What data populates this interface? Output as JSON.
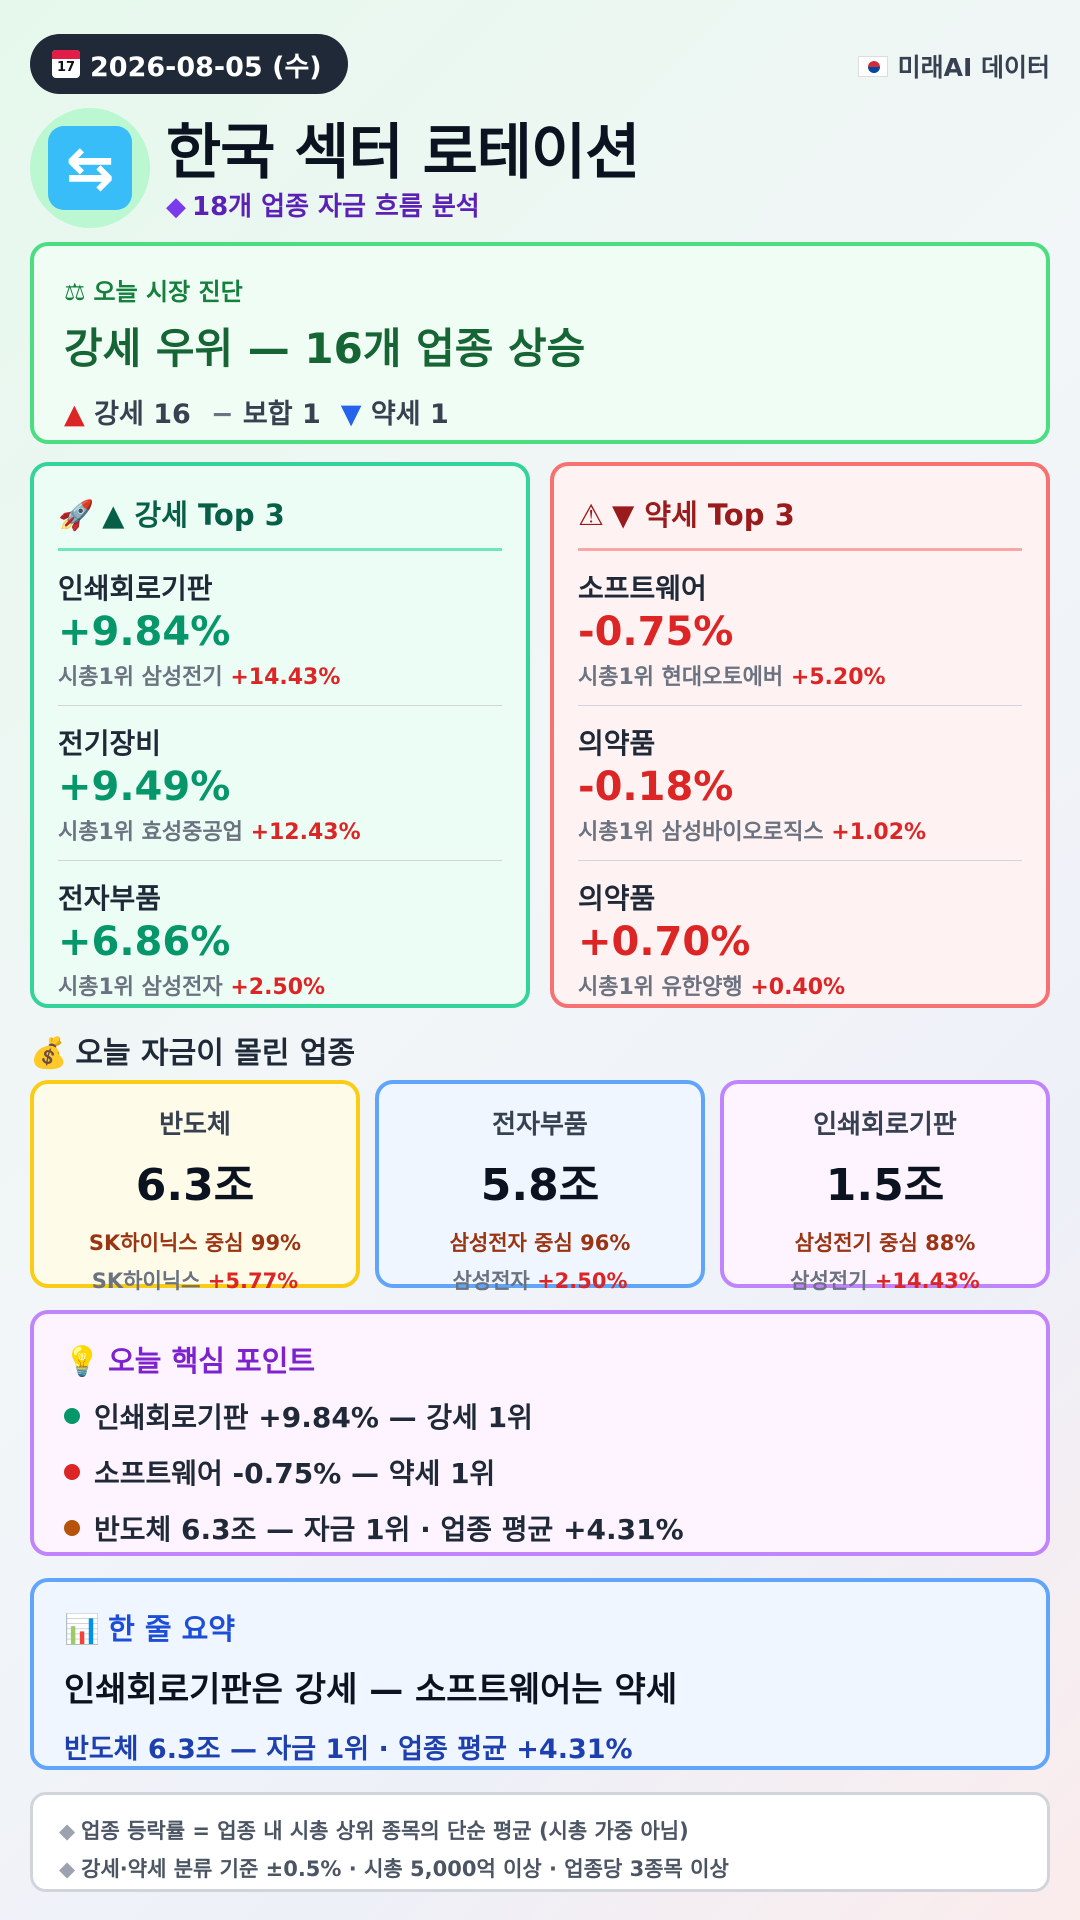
{
  "header": {
    "date": "2026-08-05 (수)",
    "calendar_icon_text": "17",
    "brand": "미래AI 데이터",
    "title": "한국 섹터 로테이션",
    "subtitle": "18개 업종 자금 흐름 분석",
    "hero_icon": "rotate-arrows-icon"
  },
  "diagnosis": {
    "label": "오늘 시장 진단",
    "headline": "강세 우위 — 16개 업종 상승",
    "strong_label": "강세 16",
    "neutral_label": "보합 1",
    "weak_label": "약세 1"
  },
  "strong_top3": {
    "title": "▲ 강세 Top 3",
    "items": [
      {
        "sector": "인쇄회로기판",
        "change": "+9.84%",
        "leader_prefix": "시총1위 삼성전기",
        "leader_change": "+14.43%"
      },
      {
        "sector": "전기장비",
        "change": "+9.49%",
        "leader_prefix": "시총1위 효성중공업",
        "leader_change": "+12.43%"
      },
      {
        "sector": "전자부품",
        "change": "+6.86%",
        "leader_prefix": "시총1위 삼성전자",
        "leader_change": "+2.50%"
      }
    ]
  },
  "weak_top3": {
    "title": "▼ 약세 Top 3",
    "items": [
      {
        "sector": "소프트웨어",
        "change": "-0.75%",
        "leader_prefix": "시총1위 현대오토에버",
        "leader_change": "+5.20%"
      },
      {
        "sector": "의약품",
        "change": "-0.18%",
        "leader_prefix": "시총1위 삼성바이오로직스",
        "leader_change": "+1.02%"
      },
      {
        "sector": "의약품",
        "change": "+0.70%",
        "leader_prefix": "시총1위 유한양행",
        "leader_change": "+0.40%"
      }
    ]
  },
  "money_flow": {
    "title": "오늘 자금이 몰린 업종",
    "sectors": [
      {
        "name": "반도체",
        "amount": "6.3조",
        "concentration": "SK하이닉스 중심 99%",
        "stock": "SK하이닉스",
        "stock_change": "+5.77%"
      },
      {
        "name": "전자부품",
        "amount": "5.8조",
        "concentration": "삼성전자 중심 96%",
        "stock": "삼성전자",
        "stock_change": "+2.50%"
      },
      {
        "name": "인쇄회로기판",
        "amount": "1.5조",
        "concentration": "삼성전기 중심 88%",
        "stock": "삼성전기",
        "stock_change": "+14.43%"
      }
    ]
  },
  "key_points": {
    "title": "오늘 핵심 포인트",
    "items": [
      {
        "text": "인쇄회로기판 +9.84% — 강세 1위",
        "color": "#059669"
      },
      {
        "text": "소프트웨어 -0.75% — 약세 1위",
        "color": "#dc2626"
      },
      {
        "text": "반도체 6.3조 — 자금 1위 · 업종 평균 +4.31%",
        "color": "#b45309"
      }
    ]
  },
  "summary": {
    "title": "한 줄 요약",
    "main": "인쇄회로기판은 강세 — 소프트웨어는 약세",
    "sub": "반도체 6.3조 — 자금 1위 · 업종 평균 +4.31%"
  },
  "footnotes": [
    "업종 등락률 = 업종 내 시총 상위 종목의 단순 평균 (시총 가중 아님)",
    "강세·약세 분류 기준 ±0.5% · 시총 5,000억 이상 · 업종당 3종목 이상"
  ]
}
